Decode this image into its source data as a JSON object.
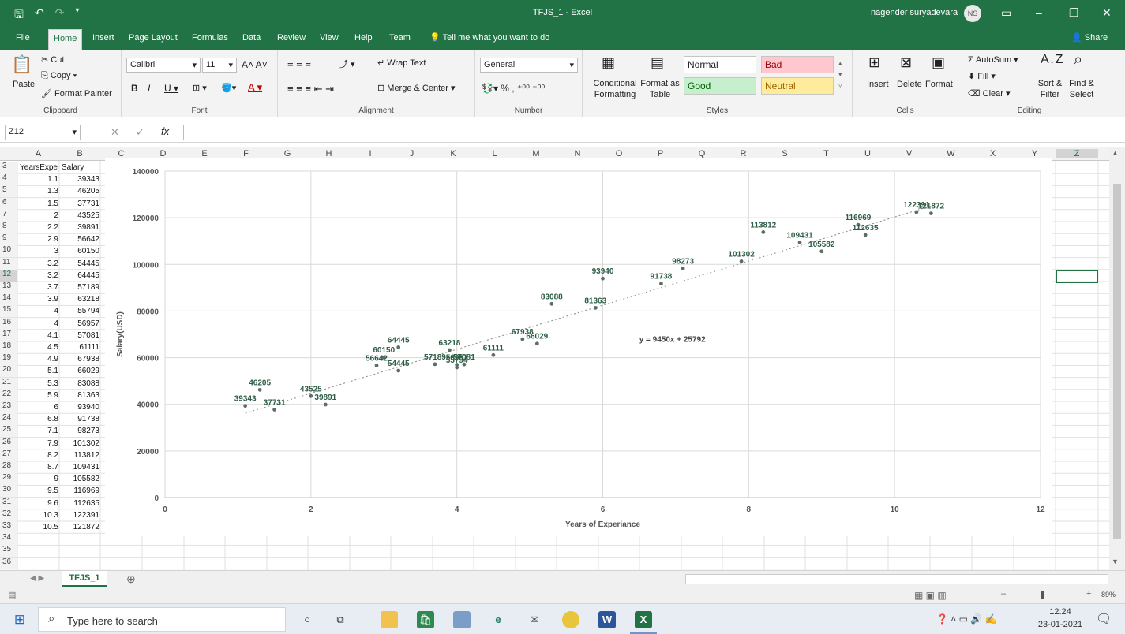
{
  "title_bar": {
    "file": "TFJS_1",
    "app": "Excel",
    "title": "TFJS_1  -  Excel",
    "user": "nagender suryadevara",
    "initials": "NS"
  },
  "tabs": [
    "File",
    "Home",
    "Insert",
    "Page Layout",
    "Formulas",
    "Data",
    "Review",
    "View",
    "Help",
    "Team"
  ],
  "active_tab": "Home",
  "tell_me": "Tell me what you want to do",
  "share": "Share",
  "ribbon": {
    "clipboard": {
      "paste": "Paste",
      "cut": "Cut",
      "copy": "Copy",
      "format_painter": "Format Painter",
      "label": "Clipboard"
    },
    "font": {
      "name": "Calibri",
      "size": "11",
      "label": "Font"
    },
    "alignment": {
      "wrap_text": "Wrap Text",
      "merge_center": "Merge & Center",
      "label": "Alignment"
    },
    "number": {
      "format": "General",
      "label": "Number"
    },
    "styles": {
      "conditional": "Conditional Formatting",
      "format_as_table": "Format as Table",
      "normal": "Normal",
      "bad": "Bad",
      "good": "Good",
      "neutral": "Neutral",
      "label": "Styles"
    },
    "cells": {
      "insert": "Insert",
      "delete": "Delete",
      "format": "Format",
      "label": "Cells"
    },
    "editing": {
      "autosum": "AutoSum",
      "fill": "Fill",
      "clear": "Clear",
      "sort_filter": "Sort & Filter",
      "find_select": "Find & Select",
      "label": "Editing"
    }
  },
  "formula_bar": {
    "name_box": "Z12",
    "formula": ""
  },
  "columns": [
    "A",
    "B",
    "C",
    "D",
    "E",
    "F",
    "G",
    "H",
    "I",
    "J",
    "K",
    "L",
    "M",
    "N",
    "O",
    "P",
    "Q",
    "R",
    "S",
    "T",
    "U",
    "V",
    "W",
    "X",
    "Y",
    "Z"
  ],
  "header_row": {
    "row": "3",
    "a": "YearsExpe",
    "b": "Salary"
  },
  "rows": [
    {
      "row": "4",
      "a": "1.1",
      "b": "39343"
    },
    {
      "row": "5",
      "a": "1.3",
      "b": "46205"
    },
    {
      "row": "6",
      "a": "1.5",
      "b": "37731"
    },
    {
      "row": "7",
      "a": "2",
      "b": "43525"
    },
    {
      "row": "8",
      "a": "2.2",
      "b": "39891"
    },
    {
      "row": "9",
      "a": "2.9",
      "b": "56642"
    },
    {
      "row": "10",
      "a": "3",
      "b": "60150"
    },
    {
      "row": "11",
      "a": "3.2",
      "b": "54445"
    },
    {
      "row": "12",
      "a": "3.2",
      "b": "64445"
    },
    {
      "row": "13",
      "a": "3.7",
      "b": "57189"
    },
    {
      "row": "14",
      "a": "3.9",
      "b": "63218"
    },
    {
      "row": "15",
      "a": "4",
      "b": "55794"
    },
    {
      "row": "16",
      "a": "4",
      "b": "56957"
    },
    {
      "row": "17",
      "a": "4.1",
      "b": "57081"
    },
    {
      "row": "18",
      "a": "4.5",
      "b": "61111"
    },
    {
      "row": "19",
      "a": "4.9",
      "b": "67938"
    },
    {
      "row": "20",
      "a": "5.1",
      "b": "66029"
    },
    {
      "row": "21",
      "a": "5.3",
      "b": "83088"
    },
    {
      "row": "22",
      "a": "5.9",
      "b": "81363"
    },
    {
      "row": "23",
      "a": "6",
      "b": "93940"
    },
    {
      "row": "24",
      "a": "6.8",
      "b": "91738"
    },
    {
      "row": "25",
      "a": "7.1",
      "b": "98273"
    },
    {
      "row": "26",
      "a": "7.9",
      "b": "101302"
    },
    {
      "row": "27",
      "a": "8.2",
      "b": "113812"
    },
    {
      "row": "28",
      "a": "8.7",
      "b": "109431"
    },
    {
      "row": "29",
      "a": "9",
      "b": "105582"
    },
    {
      "row": "30",
      "a": "9.5",
      "b": "116969"
    },
    {
      "row": "31",
      "a": "9.6",
      "b": "112635"
    },
    {
      "row": "32",
      "a": "10.3",
      "b": "122391"
    },
    {
      "row": "33",
      "a": "10.5",
      "b": "121872"
    }
  ],
  "extra_rows": [
    "34",
    "35",
    "36"
  ],
  "chart_data": {
    "type": "scatter",
    "xlabel": "Years of Experiance",
    "ylabel": "Salary(USD)",
    "xlim": [
      0,
      12
    ],
    "ylim": [
      0,
      140000
    ],
    "xticks": [
      0,
      2,
      4,
      6,
      8,
      10,
      12
    ],
    "yticks": [
      0,
      20000,
      40000,
      60000,
      80000,
      100000,
      120000,
      140000
    ],
    "grid": true,
    "trendline": {
      "slope": 9450,
      "intercept": 25792,
      "label": "y = 9450x + 25792"
    },
    "points": [
      [
        1.1,
        39343
      ],
      [
        1.3,
        46205
      ],
      [
        1.5,
        37731
      ],
      [
        2,
        43525
      ],
      [
        2.2,
        39891
      ],
      [
        2.9,
        56642
      ],
      [
        3,
        60150
      ],
      [
        3.2,
        54445
      ],
      [
        3.2,
        64445
      ],
      [
        3.7,
        57189
      ],
      [
        3.9,
        63218
      ],
      [
        4,
        55794
      ],
      [
        4,
        56957
      ],
      [
        4.1,
        57081
      ],
      [
        4.5,
        61111
      ],
      [
        4.9,
        67938
      ],
      [
        5.1,
        66029
      ],
      [
        5.3,
        83088
      ],
      [
        5.9,
        81363
      ],
      [
        6,
        93940
      ],
      [
        6.8,
        91738
      ],
      [
        7.1,
        98273
      ],
      [
        7.9,
        101302
      ],
      [
        8.2,
        113812
      ],
      [
        8.7,
        109431
      ],
      [
        9,
        105582
      ],
      [
        9.5,
        116969
      ],
      [
        9.6,
        112635
      ],
      [
        10.3,
        122391
      ],
      [
        10.5,
        121872
      ]
    ],
    "point_color": "#5a6e6a",
    "label_color": "#2e5e46"
  },
  "sheet_tab": "TFJS_1",
  "status": {
    "zoom": "89%"
  },
  "taskbar": {
    "search": "Type here to search",
    "time": "12:24",
    "date": "23-01-2021"
  },
  "colors": {
    "excel_green": "#217346",
    "bad_bg": "#ffc7ce",
    "good_bg": "#c6efce",
    "neutral_bg": "#ffeb9c"
  }
}
